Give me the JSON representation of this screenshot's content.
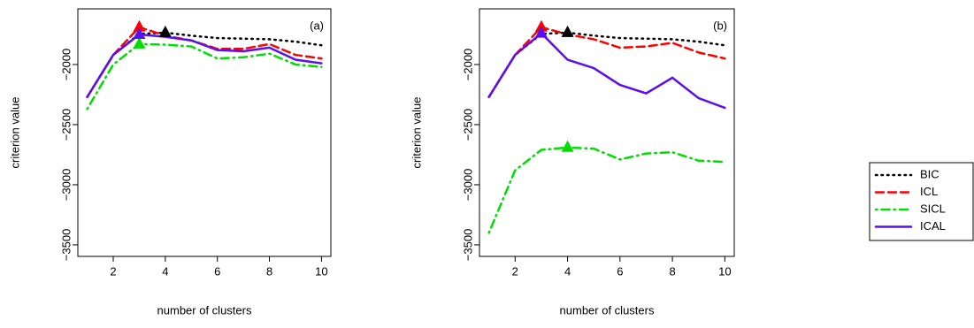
{
  "chart_data": [
    {
      "type": "line",
      "annotation": "(a)",
      "xlabel": "number of clusters",
      "ylabel": "criterion value",
      "x": [
        1,
        2,
        3,
        4,
        5,
        6,
        7,
        8,
        9,
        10
      ],
      "xlim": [
        0.64,
        10.36
      ],
      "ylim": [
        -3596,
        -1537
      ],
      "xticks": [
        2,
        4,
        6,
        8,
        10
      ],
      "yticks": [
        {
          "value": -3500,
          "label": "−3500"
        },
        {
          "value": -3000,
          "label": "−3000"
        },
        {
          "value": -2500,
          "label": "−2500"
        },
        {
          "value": -2000,
          "label": "−2000"
        }
      ],
      "legend": "right",
      "max_marker": "triangle",
      "series": [
        {
          "name": "BIC",
          "color": "#000000",
          "linestyle": "dotted",
          "values": [
            -2270,
            -1920,
            -1745,
            -1735,
            -1760,
            -1780,
            -1785,
            -1790,
            -1810,
            -1840
          ]
        },
        {
          "name": "ICL",
          "color": "#ff0000",
          "linestyle": "dashed",
          "values": [
            -2270,
            -1920,
            -1690,
            -1760,
            -1800,
            -1870,
            -1870,
            -1830,
            -1920,
            -1950
          ]
        },
        {
          "name": "SICL",
          "color": "#00dd00",
          "linestyle": "dotdash",
          "values": [
            -2370,
            -2000,
            -1830,
            -1835,
            -1850,
            -1950,
            -1940,
            -1910,
            -2000,
            -2020
          ]
        },
        {
          "name": "ICAL",
          "color": "#5a10ee",
          "linestyle": "solid",
          "values": [
            -2270,
            -1920,
            -1750,
            -1770,
            -1800,
            -1880,
            -1890,
            -1860,
            -1960,
            -1990
          ]
        }
      ]
    },
    {
      "type": "line",
      "annotation": "(b)",
      "xlabel": "number of clusters",
      "ylabel": "criterion value",
      "x": [
        1,
        2,
        3,
        4,
        5,
        6,
        7,
        8,
        9,
        10
      ],
      "xlim": [
        0.64,
        10.36
      ],
      "ylim": [
        -3596,
        -1537
      ],
      "xticks": [
        2,
        4,
        6,
        8,
        10
      ],
      "yticks": [
        {
          "value": -3500,
          "label": "−3500"
        },
        {
          "value": -3000,
          "label": "−3000"
        },
        {
          "value": -2500,
          "label": "−2500"
        },
        {
          "value": -2000,
          "label": "−2000"
        }
      ],
      "max_marker": "triangle",
      "series": [
        {
          "color": "#000000",
          "linestyle": "dotted",
          "values": [
            -2270,
            -1920,
            -1745,
            -1735,
            -1760,
            -1780,
            -1785,
            -1790,
            -1810,
            -1840
          ]
        },
        {
          "color": "#ff0000",
          "linestyle": "dashed",
          "values": [
            -2270,
            -1920,
            -1690,
            -1750,
            -1790,
            -1860,
            -1850,
            -1820,
            -1900,
            -1950
          ]
        },
        {
          "color": "#00dd00",
          "linestyle": "dotdash",
          "values": [
            -3400,
            -2880,
            -2710,
            -2690,
            -2700,
            -2790,
            -2740,
            -2730,
            -2800,
            -2810
          ]
        },
        {
          "color": "#5a10ee",
          "linestyle": "solid",
          "values": [
            -2270,
            -1920,
            -1740,
            -1960,
            -2030,
            -2170,
            -2240,
            -2110,
            -2280,
            -2360
          ]
        }
      ]
    }
  ]
}
